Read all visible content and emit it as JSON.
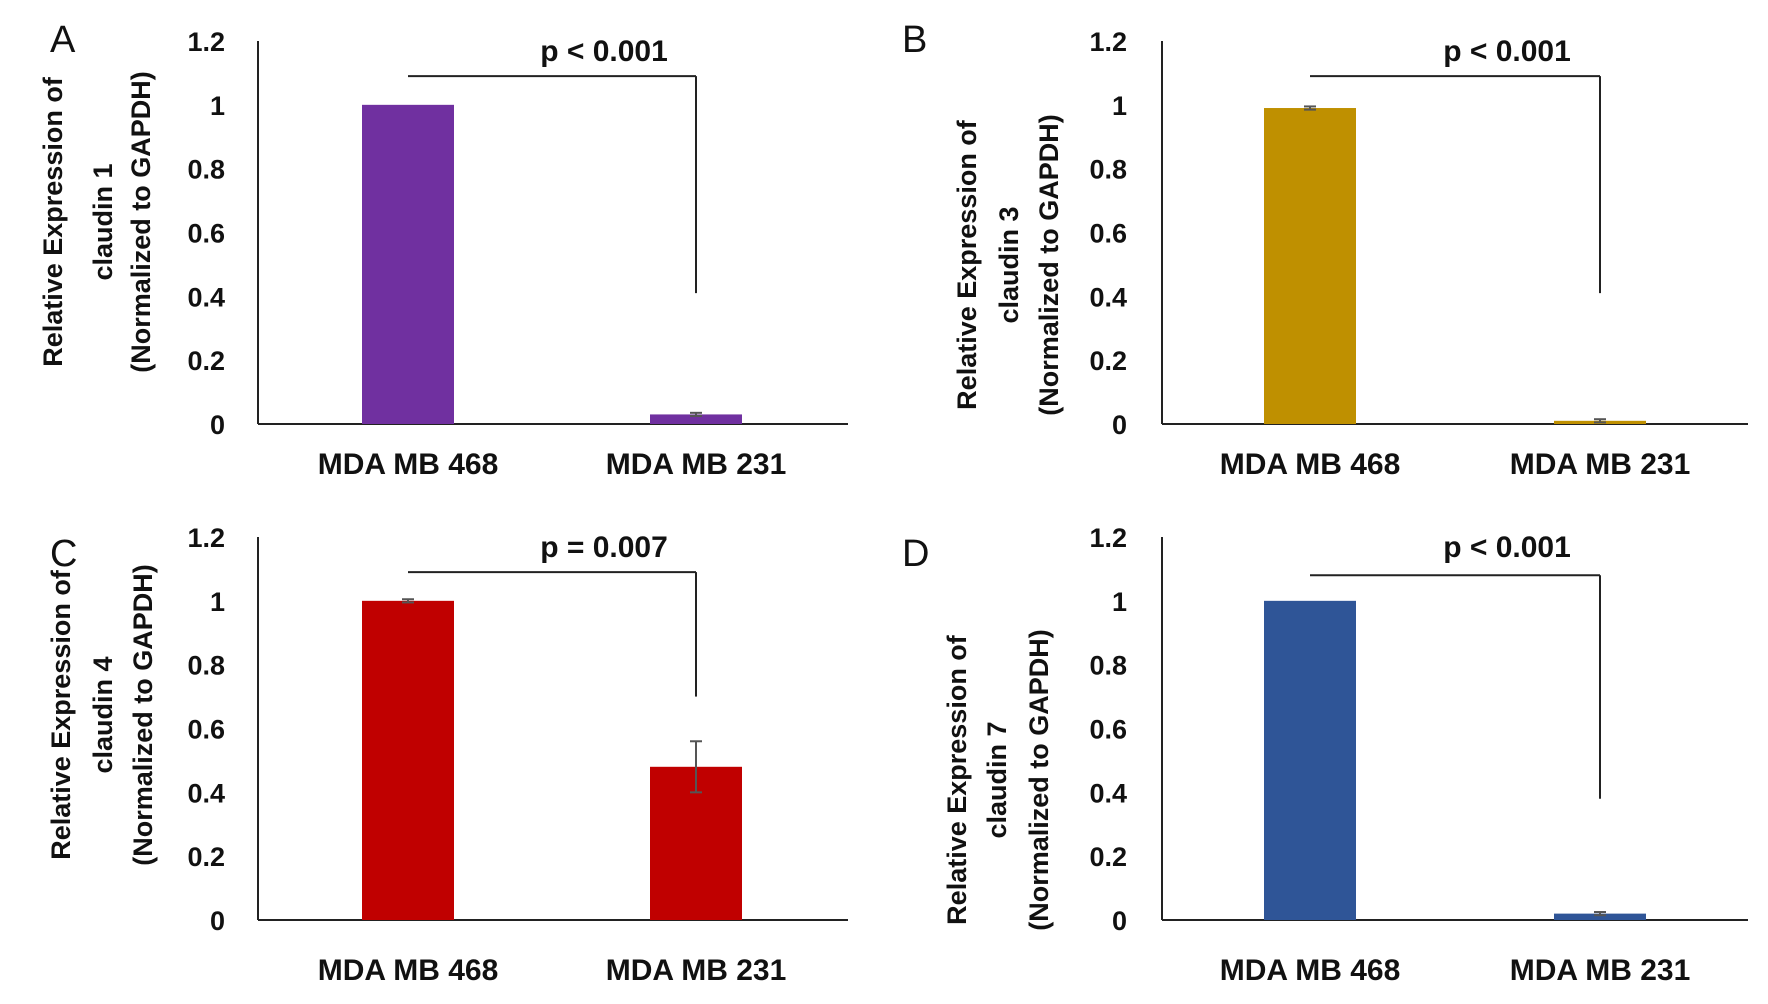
{
  "chart_data": [
    {
      "panel": "A",
      "type": "bar",
      "categories": [
        "MDA MB 468",
        "MDA MB 231"
      ],
      "values": [
        1.0,
        0.03
      ],
      "errors": [
        0.0,
        0.005
      ],
      "color": "#7030a0",
      "ylabel": [
        "Relative Expression of",
        "claudin 1",
        "(Normalized to GAPDH)"
      ],
      "ylim": [
        0,
        1.2
      ],
      "yticks": [
        "0",
        "0.2",
        "0.4",
        "0.6",
        "0.8",
        "1",
        "1.2"
      ],
      "annotation": {
        "text": "p < 0.001",
        "bracket_y": 1.09,
        "drop_to": 0.41
      },
      "grid": false
    },
    {
      "panel": "B",
      "type": "bar",
      "categories": [
        "MDA MB 468",
        "MDA MB 231"
      ],
      "values": [
        0.99,
        0.01
      ],
      "errors": [
        0.005,
        0.005
      ],
      "color": "#bf9000",
      "ylabel": [
        "Relative Expression of",
        "claudin 3",
        "(Normalized to GAPDH)"
      ],
      "ylim": [
        0,
        1.2
      ],
      "yticks": [
        "0",
        "0.2",
        "0.4",
        "0.6",
        "0.8",
        "1",
        "1.2"
      ],
      "annotation": {
        "text": "p < 0.001",
        "bracket_y": 1.09,
        "drop_to": 0.41
      },
      "grid": false
    },
    {
      "panel": "C",
      "type": "bar",
      "categories": [
        "MDA MB 468",
        "MDA MB 231"
      ],
      "values": [
        1.0,
        0.48
      ],
      "errors": [
        0.005,
        0.08
      ],
      "color": "#c00000",
      "ylabel": [
        "Relative Expression of",
        "claudin 4",
        "(Normalized to GAPDH)"
      ],
      "ylim": [
        0,
        1.2
      ],
      "yticks": [
        "0",
        "0.2",
        "0.4",
        "0.6",
        "0.8",
        "1",
        "1.2"
      ],
      "annotation": {
        "text": "p = 0.007",
        "bracket_y": 1.09,
        "drop_to": 0.7
      },
      "grid": false
    },
    {
      "panel": "D",
      "type": "bar",
      "categories": [
        "MDA MB 468",
        "MDA MB 231"
      ],
      "values": [
        1.0,
        0.02
      ],
      "errors": [
        0.0,
        0.005
      ],
      "color": "#2f5597",
      "ylabel": [
        "Relative Expression of",
        "claudin 7",
        "(Normalized to GAPDH)"
      ],
      "ylim": [
        0,
        1.2
      ],
      "yticks": [
        "0",
        "0.2",
        "0.4",
        "0.6",
        "0.8",
        "1",
        "1.2"
      ],
      "annotation": {
        "text": "p < 0.001",
        "bracket_y": 1.08,
        "drop_to": 0.38
      },
      "grid": false
    }
  ]
}
